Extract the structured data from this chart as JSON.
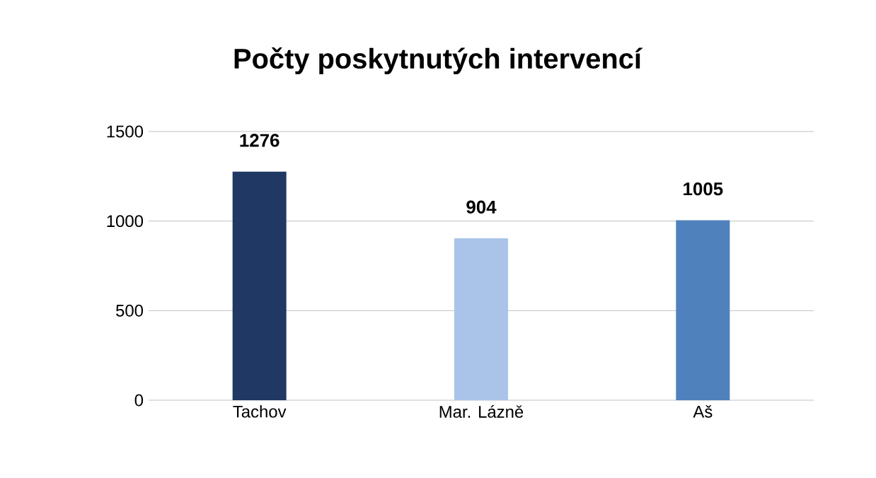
{
  "chart_data": {
    "type": "bar",
    "title": "Počty poskytnutých intervencí",
    "categories": [
      "Tachov",
      "Mar. Lázně",
      "Aš"
    ],
    "values": [
      1276,
      904,
      1005
    ],
    "colors": [
      "#1f3864",
      "#a9c4e8",
      "#4f81bd"
    ],
    "ylim": [
      0,
      1500
    ],
    "yticks": [
      0,
      500,
      1000,
      1500
    ],
    "grid": "y",
    "data_labels": true
  }
}
